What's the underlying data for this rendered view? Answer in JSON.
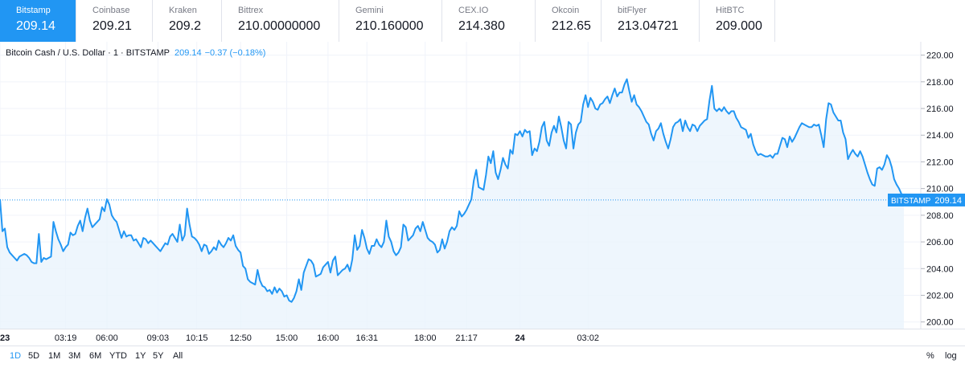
{
  "exchanges": [
    {
      "name": "Bitstamp",
      "price": "209.14",
      "active": true
    },
    {
      "name": "Coinbase",
      "price": "209.21"
    },
    {
      "name": "Kraken",
      "price": "209.2"
    },
    {
      "name": "Bittrex",
      "price": "210.00000000"
    },
    {
      "name": "Gemini",
      "price": "210.160000"
    },
    {
      "name": "CEX.IO",
      "price": "214.380"
    },
    {
      "name": "Okcoin",
      "price": "212.65"
    },
    {
      "name": "bitFlyer",
      "price": "213.04721"
    },
    {
      "name": "HitBTC",
      "price": "209.000"
    }
  ],
  "legend": {
    "symbol": "Bitcoin Cash / U.S. Dollar · 1 · BITSTAMP",
    "last": "209.14",
    "change": "−0.37 (−0.18%)"
  },
  "price_tag": {
    "label": "BITSTAMP",
    "value": "209.14"
  },
  "ranges": [
    {
      "label": "1D",
      "active": true
    },
    {
      "label": "5D"
    },
    {
      "label": "1M"
    },
    {
      "label": "3M"
    },
    {
      "label": "6M"
    },
    {
      "label": "YTD"
    },
    {
      "label": "1Y"
    },
    {
      "label": "5Y"
    },
    {
      "label": "All"
    }
  ],
  "scale_options": {
    "percent": "%",
    "log": "log"
  },
  "colors": {
    "line": "#2196f3",
    "fill": "#eaf4fc",
    "active_tab": "#2196f3",
    "axis_text": "#131722",
    "grid": "#f0f3fa"
  },
  "chart_data": {
    "type": "area",
    "title": "Bitcoin Cash / U.S. Dollar · 1 · BITSTAMP",
    "ylim": [
      199.5,
      221
    ],
    "yticks": [
      200,
      202,
      204,
      206,
      208,
      210,
      212,
      214,
      216,
      218,
      220
    ],
    "ytick_labels": [
      "200.00",
      "202.00",
      "204.00",
      "206.00",
      "208.00",
      "210.00",
      "212.00",
      "214.00",
      "216.00",
      "218.00",
      "220.00"
    ],
    "xticks": [
      {
        "label": "23",
        "i": 0
      },
      {
        "label": "03:19",
        "i": 27
      },
      {
        "label": "06:00",
        "i": 44
      },
      {
        "label": "09:03",
        "i": 65
      },
      {
        "label": "10:15",
        "i": 81
      },
      {
        "label": "12:50",
        "i": 99
      },
      {
        "label": "15:00",
        "i": 118
      },
      {
        "label": "16:00",
        "i": 135
      },
      {
        "label": "16:31",
        "i": 151
      },
      {
        "label": "18:00",
        "i": 175
      },
      {
        "label": "21:17",
        "i": 192
      },
      {
        "label": "24",
        "i": 214
      },
      {
        "label": "03:02",
        "i": 242
      }
    ],
    "last_value": 209.14,
    "series": [
      {
        "values": [
          209.2,
          206.8,
          207.0,
          205.6,
          205.2,
          205.0,
          204.8,
          204.6,
          204.9,
          205.0,
          205.1,
          205.0,
          204.8,
          204.5,
          204.4,
          204.4,
          206.6,
          204.5,
          204.8,
          204.7,
          204.8,
          204.9,
          207.5,
          206.8,
          206.2,
          205.8,
          205.3,
          205.6,
          205.8,
          206.7,
          206.5,
          206.6,
          207.2,
          207.6,
          206.8,
          207.8,
          208.5,
          207.6,
          207.1,
          207.3,
          207.5,
          207.7,
          208.6,
          208.3,
          209.2,
          208.8,
          208.0,
          207.7,
          207.5,
          206.9,
          206.3,
          206.8,
          206.4,
          206.5,
          206.5,
          206.1,
          206.2,
          205.9,
          205.6,
          206.3,
          206.2,
          205.9,
          206.1,
          205.9,
          205.7,
          205.5,
          205.3,
          205.6,
          205.9,
          205.8,
          206.4,
          206.6,
          206.3,
          206.0,
          207.3,
          206.1,
          206.5,
          208.5,
          207.3,
          206.4,
          206.3,
          206.1,
          205.8,
          205.3,
          205.8,
          205.7,
          205.1,
          205.3,
          205.6,
          205.4,
          206.1,
          205.8,
          205.6,
          205.9,
          206.3,
          206.1,
          206.5,
          205.7,
          205.4,
          205.2,
          204.2,
          204.0,
          203.2,
          203.0,
          202.9,
          202.8,
          203.9,
          203.1,
          202.7,
          202.6,
          202.3,
          202.4,
          202.1,
          202.6,
          202.2,
          202.5,
          202.3,
          201.9,
          202.0,
          201.6,
          201.5,
          201.8,
          202.3,
          203.2,
          202.4,
          203.7,
          204.2,
          204.7,
          204.6,
          204.3,
          203.4,
          203.5,
          203.6,
          204.1,
          204.3,
          204.5,
          203.7,
          204.6,
          204.9,
          203.5,
          203.7,
          203.9,
          204.0,
          204.3,
          203.8,
          204.7,
          206.5,
          205.4,
          205.7,
          206.9,
          206.3,
          205.5,
          205.1,
          205.7,
          205.7,
          206.2,
          205.8,
          205.6,
          206.0,
          207.6,
          206.4,
          206.0,
          205.3,
          205.0,
          205.2,
          205.6,
          207.3,
          207.1,
          206.1,
          206.3,
          206.5,
          207.0,
          207.2,
          206.8,
          207.5,
          206.9,
          206.3,
          206.1,
          206.0,
          205.8,
          205.2,
          205.4,
          206.2,
          205.5,
          206.0,
          206.8,
          207.1,
          206.9,
          207.2,
          208.3,
          207.9,
          208.1,
          208.4,
          208.8,
          209.2,
          210.6,
          211.4,
          210.1,
          210.0,
          209.9,
          211.0,
          212.4,
          211.9,
          212.8,
          211.2,
          210.7,
          211.4,
          212.3,
          211.8,
          211.5,
          212.9,
          212.6,
          214.1,
          214.0,
          214.3,
          213.9,
          214.4,
          214.2,
          214.3,
          212.5,
          213.0,
          212.8,
          213.5,
          214.6,
          215.0,
          213.6,
          213.2,
          214.2,
          214.7,
          214.2,
          215.4,
          214.6,
          213.6,
          213.0,
          215.0,
          214.8,
          213.0,
          214.2,
          214.8,
          215.0,
          216.3,
          217.0,
          216.1,
          216.8,
          216.5,
          216.0,
          215.9,
          216.3,
          216.4,
          216.7,
          216.9,
          216.4,
          217.0,
          217.5,
          216.9,
          217.2,
          217.2,
          217.8,
          218.2,
          217.3,
          216.5,
          217.0,
          216.3,
          216.1,
          215.8,
          215.4,
          215.0,
          214.8,
          214.1,
          213.6,
          214.3,
          214.5,
          214.9,
          214.1,
          213.5,
          213.0,
          213.7,
          214.6,
          214.9,
          215.0,
          215.2,
          214.3,
          215.1,
          214.6,
          214.3,
          214.8,
          214.7,
          214.3,
          214.7,
          214.9,
          215.1,
          215.2,
          216.6,
          217.7,
          216.0,
          215.8,
          216.0,
          215.8,
          216.1,
          215.8,
          215.6,
          215.8,
          215.8,
          215.3,
          215.0,
          214.6,
          214.5,
          214.4,
          213.8,
          214.1,
          213.3,
          212.8,
          212.5,
          212.6,
          212.5,
          212.4,
          212.4,
          212.5,
          212.3,
          212.6,
          212.6,
          213.2,
          213.8,
          213.7,
          213.1,
          213.9,
          213.5,
          213.8,
          214.2,
          214.6,
          214.9,
          214.8,
          214.7,
          214.6,
          214.6,
          214.8,
          214.7,
          214.8,
          214.0,
          213.1,
          215.2,
          216.4,
          216.3,
          215.7,
          215.4,
          215.1,
          215.1,
          214.2,
          213.7,
          212.2,
          212.6,
          212.9,
          212.6,
          212.4,
          212.8,
          212.4,
          211.8,
          211.2,
          210.7,
          210.3,
          210.2,
          211.5,
          211.6,
          211.4,
          211.8,
          212.5,
          212.2,
          211.6,
          210.7,
          210.3,
          210.0,
          209.6,
          209.14
        ]
      }
    ]
  }
}
